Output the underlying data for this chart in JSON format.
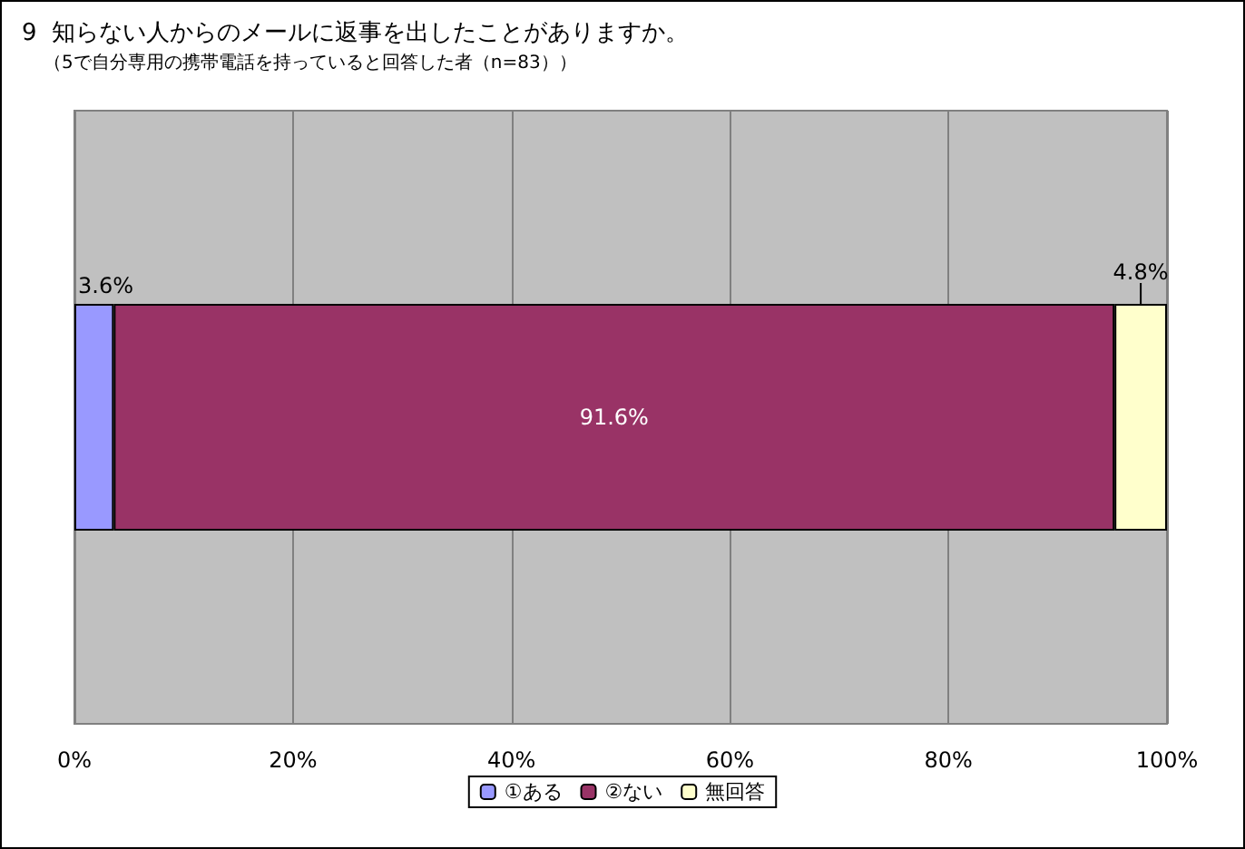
{
  "chart_data": {
    "type": "bar",
    "orientation": "horizontal",
    "stacked": true,
    "title": "9  知らない人からのメールに返事を出したことがありますか。",
    "subtitle": "（5で自分専用の携帯電話を持っていると回答した者（n=83））",
    "categories": [
      null
    ],
    "series": [
      {
        "name": "①ある",
        "color": "#9999ff",
        "values": [
          3.6
        ],
        "value_labels": [
          "3.6%"
        ]
      },
      {
        "name": "②ない",
        "color": "#993366",
        "values": [
          91.6
        ],
        "value_labels": [
          "91.6%"
        ]
      },
      {
        "name": "無回答",
        "color": "#ffffcc",
        "values": [
          4.8
        ],
        "value_labels": [
          "4.8%"
        ]
      }
    ],
    "xlim": [
      0,
      100
    ],
    "xticks": [
      {
        "value": 0,
        "label": "0%"
      },
      {
        "value": 20,
        "label": "20%"
      },
      {
        "value": 40,
        "label": "40%"
      },
      {
        "value": 60,
        "label": "60%"
      },
      {
        "value": 80,
        "label": "80%"
      },
      {
        "value": 100,
        "label": "100%"
      }
    ],
    "grid": "x",
    "legend": "bottom",
    "tick_labels": "x"
  }
}
